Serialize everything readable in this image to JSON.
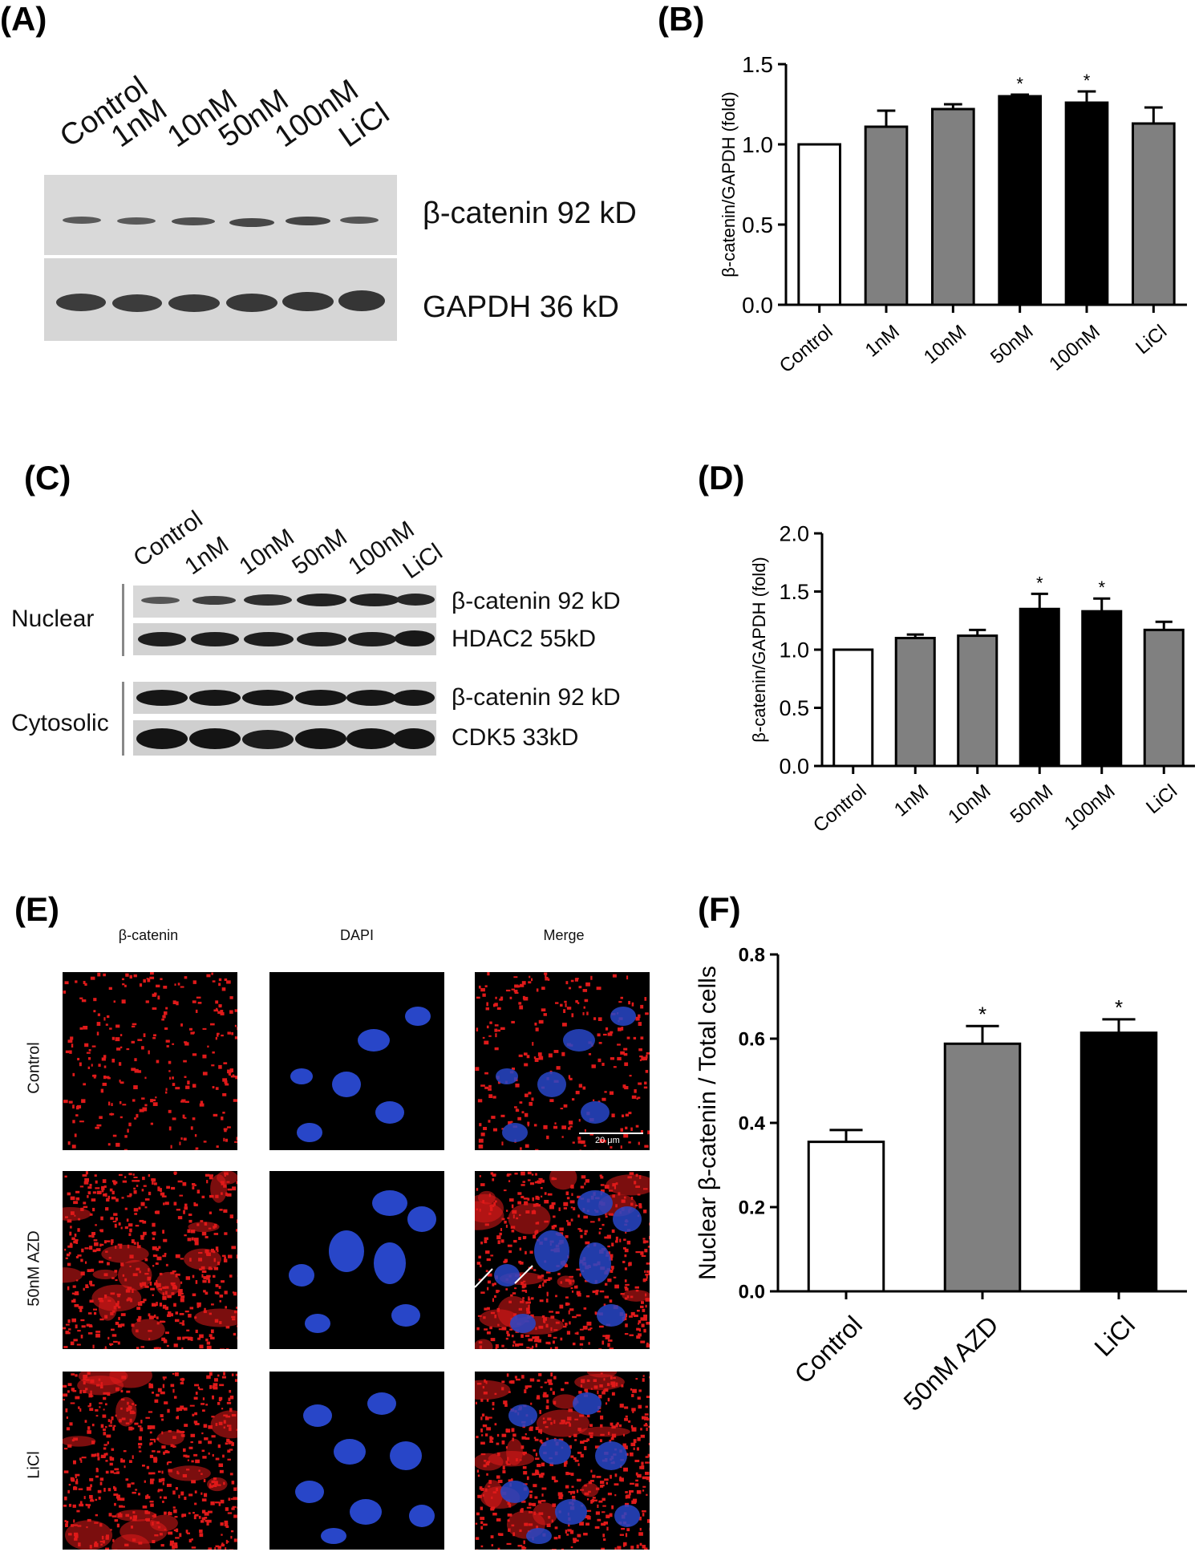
{
  "panel_letters": {
    "a": "(A)",
    "b": "(B)",
    "c": "(C)",
    "d": "(D)",
    "e": "(E)",
    "f": "(F)"
  },
  "blot_a": {
    "lanes": [
      "Control",
      "1nM",
      "10nM",
      "50nM",
      "100nM",
      "LiCl"
    ],
    "rows": [
      "β-catenin 92 kD",
      "GAPDH 36 kD"
    ]
  },
  "blot_c": {
    "lanes": [
      "Control",
      "1nM",
      "10nM",
      "50nM",
      "100nM",
      "LiCl"
    ],
    "groups": [
      "Nuclear",
      "Cytosolic"
    ],
    "rows": [
      "β-catenin 92 kD",
      "HDAC2 55kD",
      "β-catenin 92 kD",
      "CDK5 33kD"
    ]
  },
  "micrographs": {
    "columns": [
      "β-catenin",
      "DAPI",
      "Merge"
    ],
    "rows": [
      "Control",
      "50nM AZD",
      "LiCl"
    ],
    "scale_bar": "20 μm",
    "colors": {
      "stain": "#e01a1a",
      "nuclei": "#2846c8",
      "background": "#000000"
    }
  },
  "chart_data": [
    {
      "panel": "B",
      "type": "bar",
      "categories": [
        "Control",
        "1nM",
        "10nM",
        "50nM",
        "100nM",
        "LiCl"
      ],
      "values": [
        1.0,
        1.11,
        1.22,
        1.3,
        1.26,
        1.13
      ],
      "errors": [
        0,
        0.1,
        0.03,
        0.01,
        0.07,
        0.1
      ],
      "significance": [
        "",
        "",
        "",
        "*",
        "*",
        ""
      ],
      "fills": [
        "#ffffff",
        "#808080",
        "#808080",
        "#000000",
        "#000000",
        "#808080"
      ],
      "ylabel": "β-catenin/GAPDH (fold)",
      "ylim": [
        0,
        1.5
      ],
      "yticks": [
        "0.0",
        "0.5",
        "1.0",
        "1.5"
      ],
      "grid": false
    },
    {
      "panel": "D",
      "type": "bar",
      "categories": [
        "Control",
        "1nM",
        "10nM",
        "50nM",
        "100nM",
        "LiCl"
      ],
      "values": [
        1.0,
        1.1,
        1.12,
        1.35,
        1.33,
        1.17
      ],
      "errors": [
        0,
        0.03,
        0.05,
        0.13,
        0.11,
        0.07
      ],
      "significance": [
        "",
        "",
        "",
        "*",
        "*",
        ""
      ],
      "fills": [
        "#ffffff",
        "#808080",
        "#808080",
        "#000000",
        "#000000",
        "#808080"
      ],
      "ylabel": "β-catenin/GAPDH (fold)",
      "ylim": [
        0,
        2.0
      ],
      "yticks": [
        "0.0",
        "0.5",
        "1.0",
        "1.5",
        "2.0"
      ],
      "grid": false
    },
    {
      "panel": "F",
      "type": "bar",
      "categories": [
        "Control",
        "50nM AZD",
        "LiCl"
      ],
      "values": [
        0.355,
        0.588,
        0.614
      ],
      "errors": [
        0.028,
        0.042,
        0.032
      ],
      "significance": [
        "",
        "*",
        "*"
      ],
      "fills": [
        "#ffffff",
        "#808080",
        "#000000"
      ],
      "ylabel": "Nuclear β-catenin / Total cells",
      "ylim": [
        0,
        0.8
      ],
      "yticks": [
        "0.0",
        "0.2",
        "0.4",
        "0.6",
        "0.8"
      ],
      "grid": false
    }
  ]
}
